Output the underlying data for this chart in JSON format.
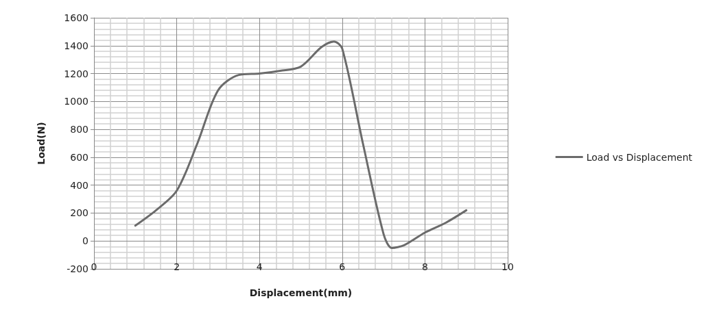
{
  "chart_data": {
    "type": "line",
    "xlabel": "Displacement(mm)",
    "ylabel": "Load(N)",
    "x": [
      1,
      1.5,
      2,
      2.5,
      3,
      3.5,
      4,
      4.5,
      5,
      5.5,
      5.8,
      6,
      6.5,
      7,
      7.2,
      7.5,
      8,
      8.5,
      9
    ],
    "series": [
      {
        "name": "Load vs Displacement",
        "color": "#6b6b6b",
        "values": [
          110,
          220,
          360,
          700,
          1080,
          1190,
          1200,
          1220,
          1250,
          1390,
          1430,
          1380,
          700,
          50,
          -50,
          -30,
          60,
          130,
          220
        ]
      }
    ],
    "xlim": [
      0,
      10
    ],
    "xticks": [
      0,
      2,
      4,
      6,
      8,
      10
    ],
    "ylim": [
      -200,
      1600
    ],
    "yticks": [
      -200,
      0,
      200,
      400,
      600,
      800,
      1000,
      1200,
      1400,
      1600
    ],
    "grid": true,
    "legend": "right",
    "marker": "none",
    "line_style": "solid"
  }
}
